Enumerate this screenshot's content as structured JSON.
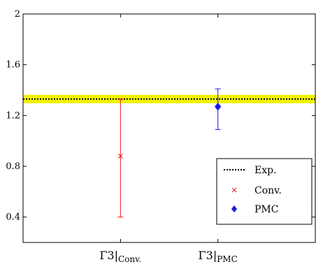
{
  "chart_data": {
    "type": "scatter",
    "title": "",
    "xlabel": "",
    "ylabel": "",
    "ylim": [
      0.2,
      2.0
    ],
    "yticks": [
      "0.4",
      "0.8",
      "1.2",
      "1.6",
      "2"
    ],
    "ytick_values": [
      0.4,
      0.8,
      1.2,
      1.6,
      2.0
    ],
    "categories": [
      {
        "main": "Γ3|",
        "sub": "Conv."
      },
      {
        "main": "Γ3|",
        "sub": "PMC"
      }
    ],
    "reference_line": {
      "name": "Exp.",
      "value": 1.33,
      "band_color": "#f2f200",
      "line_color": "#000000",
      "style": "dotted"
    },
    "series": [
      {
        "name": "Conv.",
        "category_index": 0,
        "value": 0.88,
        "lower": 0.4,
        "upper": 1.33,
        "color": "#e8141b",
        "marker": "x"
      },
      {
        "name": "PMC",
        "category_index": 1,
        "value": 1.27,
        "lower": 1.09,
        "upper": 1.41,
        "color": "#1a1ae6",
        "marker": "diamond"
      }
    ],
    "legend": {
      "position": "bottom-right",
      "entries": [
        {
          "label": "Exp.",
          "marker": "dotted-line"
        },
        {
          "label": "Conv.",
          "marker": "x"
        },
        {
          "label": "PMC",
          "marker": "diamond"
        }
      ]
    },
    "grid": false
  }
}
